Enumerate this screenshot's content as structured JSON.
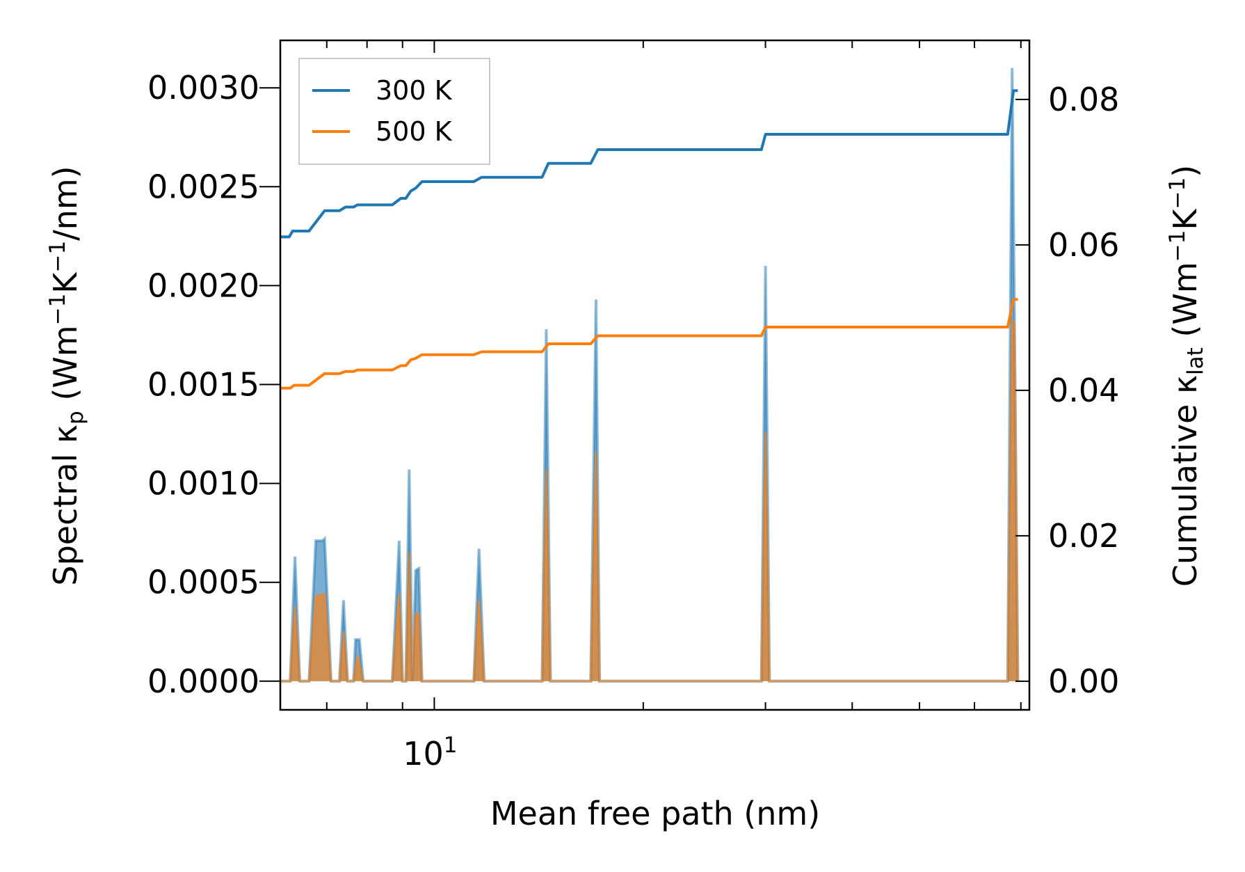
{
  "chart_data": {
    "type": "line",
    "xscale": "log",
    "xlim": [
      6.0,
      72.0
    ],
    "ylim_left": [
      -0.000145,
      0.00324
    ],
    "ylim_right": [
      -0.00393,
      0.08812
    ],
    "x_major_ticks": [
      {
        "value": 10,
        "base": "10",
        "exp": "1"
      }
    ],
    "x_minor_ticks": [
      6,
      7,
      8,
      9,
      20,
      30,
      40,
      50,
      60,
      70
    ],
    "y_left_ticks": [
      {
        "value": 0.0,
        "label": "0.0000"
      },
      {
        "value": 0.0005,
        "label": "0.0005"
      },
      {
        "value": 0.001,
        "label": "0.0010"
      },
      {
        "value": 0.0015,
        "label": "0.0015"
      },
      {
        "value": 0.002,
        "label": "0.0020"
      },
      {
        "value": 0.0025,
        "label": "0.0025"
      },
      {
        "value": 0.003,
        "label": "0.0030"
      }
    ],
    "y_right_ticks": [
      {
        "value": 0.0,
        "label": "0.00"
      },
      {
        "value": 0.02,
        "label": "0.02"
      },
      {
        "value": 0.04,
        "label": "0.04"
      },
      {
        "value": 0.06,
        "label": "0.06"
      },
      {
        "value": 0.08,
        "label": "0.08"
      }
    ],
    "xlabel": "Mean free path (nm)",
    "ylabel_left": {
      "p1": "Spectral κ",
      "sub": "p",
      "p2": " (Wm",
      "sup1": "−1",
      "p3": "K",
      "sup2": "−1",
      "p4": "/nm)"
    },
    "ylabel_right": {
      "p1": "Cumulative κ",
      "sub": "lat",
      "p2": " (Wm",
      "sup1": "−1",
      "p3": "K",
      "sup2": "−1",
      "p4": ")"
    },
    "legend_position": "top-left",
    "series": [
      {
        "name": "300 K",
        "color": "#1f77b4",
        "spectral": [
          [
            6.0,
            0
          ],
          [
            6.2,
            0
          ],
          [
            6.3,
            0.00063
          ],
          [
            6.4,
            0
          ],
          [
            6.6,
            0
          ],
          [
            6.75,
            0.00071
          ],
          [
            6.9,
            0.00071
          ],
          [
            6.95,
            0.00072
          ],
          [
            7.1,
            0
          ],
          [
            7.3,
            0
          ],
          [
            7.4,
            0.00041
          ],
          [
            7.5,
            0
          ],
          [
            7.65,
            0
          ],
          [
            7.7,
            0.00021
          ],
          [
            7.8,
            0.00021
          ],
          [
            7.9,
            0
          ],
          [
            8.7,
            0
          ],
          [
            8.9,
            0.00071
          ],
          [
            9.0,
            0
          ],
          [
            9.1,
            0
          ],
          [
            9.2,
            0.00107
          ],
          [
            9.3,
            0
          ],
          [
            9.4,
            0.00056
          ],
          [
            9.5,
            0.00057
          ],
          [
            9.6,
            0
          ],
          [
            11.4,
            0
          ],
          [
            11.6,
            0.00067
          ],
          [
            11.8,
            0
          ],
          [
            14.3,
            0
          ],
          [
            14.5,
            0.00178
          ],
          [
            14.7,
            0
          ],
          [
            16.8,
            0
          ],
          [
            17.1,
            0.00193
          ],
          [
            17.3,
            0
          ],
          [
            29.6,
            0
          ],
          [
            30.0,
            0.0021
          ],
          [
            30.4,
            0
          ],
          [
            67.0,
            0
          ],
          [
            68.0,
            0.0031
          ],
          [
            69.3,
            0
          ]
        ],
        "cumulative": [
          [
            6.0,
            0.0611
          ],
          [
            6.18,
            0.0611
          ],
          [
            6.25,
            0.0619
          ],
          [
            6.6,
            0.0619
          ],
          [
            6.95,
            0.0647
          ],
          [
            7.3,
            0.0647
          ],
          [
            7.45,
            0.0652
          ],
          [
            7.65,
            0.0652
          ],
          [
            7.75,
            0.0655
          ],
          [
            8.7,
            0.0655
          ],
          [
            8.95,
            0.0664
          ],
          [
            9.1,
            0.0664
          ],
          [
            9.25,
            0.0674
          ],
          [
            9.4,
            0.0678
          ],
          [
            9.6,
            0.0687
          ],
          [
            11.4,
            0.0687
          ],
          [
            11.7,
            0.0693
          ],
          [
            14.3,
            0.0693
          ],
          [
            14.6,
            0.0712
          ],
          [
            16.8,
            0.0712
          ],
          [
            17.2,
            0.0731
          ],
          [
            29.6,
            0.0731
          ],
          [
            30.0,
            0.0752
          ],
          [
            67.0,
            0.0752
          ],
          [
            68.3,
            0.0812
          ],
          [
            69.3,
            0.0812
          ]
        ]
      },
      {
        "name": "500 K",
        "color": "#ff7f0e",
        "spectral": [
          [
            6.0,
            0
          ],
          [
            6.2,
            0
          ],
          [
            6.3,
            0.00038
          ],
          [
            6.4,
            0
          ],
          [
            6.6,
            0
          ],
          [
            6.75,
            0.00043
          ],
          [
            6.95,
            0.00044
          ],
          [
            7.1,
            0
          ],
          [
            7.3,
            0
          ],
          [
            7.4,
            0.00025
          ],
          [
            7.5,
            0
          ],
          [
            7.65,
            0
          ],
          [
            7.75,
            0.00013
          ],
          [
            7.9,
            0
          ],
          [
            8.7,
            0
          ],
          [
            8.9,
            0.00044
          ],
          [
            9.0,
            0
          ],
          [
            9.1,
            0
          ],
          [
            9.2,
            0.00065
          ],
          [
            9.3,
            0
          ],
          [
            9.4,
            0.00034
          ],
          [
            9.5,
            0.00034
          ],
          [
            9.6,
            0
          ],
          [
            11.4,
            0
          ],
          [
            11.6,
            0.00041
          ],
          [
            11.8,
            0
          ],
          [
            14.3,
            0
          ],
          [
            14.5,
            0.00107
          ],
          [
            14.7,
            0
          ],
          [
            16.8,
            0
          ],
          [
            17.1,
            0.00116
          ],
          [
            17.3,
            0
          ],
          [
            29.6,
            0
          ],
          [
            30.0,
            0.00126
          ],
          [
            30.4,
            0
          ],
          [
            67.0,
            0
          ],
          [
            68.0,
            0.00183
          ],
          [
            68.5,
            0.0018
          ],
          [
            69.3,
            0
          ]
        ],
        "cumulative": [
          [
            6.0,
            0.0403
          ],
          [
            6.2,
            0.0403
          ],
          [
            6.28,
            0.0407
          ],
          [
            6.6,
            0.0407
          ],
          [
            6.95,
            0.0423
          ],
          [
            7.3,
            0.0423
          ],
          [
            7.45,
            0.0426
          ],
          [
            7.65,
            0.0426
          ],
          [
            7.75,
            0.0428
          ],
          [
            8.7,
            0.0428
          ],
          [
            8.95,
            0.0434
          ],
          [
            9.1,
            0.0434
          ],
          [
            9.25,
            0.0442
          ],
          [
            9.4,
            0.0444
          ],
          [
            9.6,
            0.0449
          ],
          [
            11.4,
            0.0449
          ],
          [
            11.7,
            0.0453
          ],
          [
            14.3,
            0.0453
          ],
          [
            14.6,
            0.0464
          ],
          [
            16.8,
            0.0464
          ],
          [
            17.2,
            0.0475
          ],
          [
            29.6,
            0.0475
          ],
          [
            30.0,
            0.0487
          ],
          [
            67.0,
            0.0487
          ],
          [
            68.3,
            0.0525
          ],
          [
            69.3,
            0.0525
          ]
        ]
      }
    ]
  }
}
